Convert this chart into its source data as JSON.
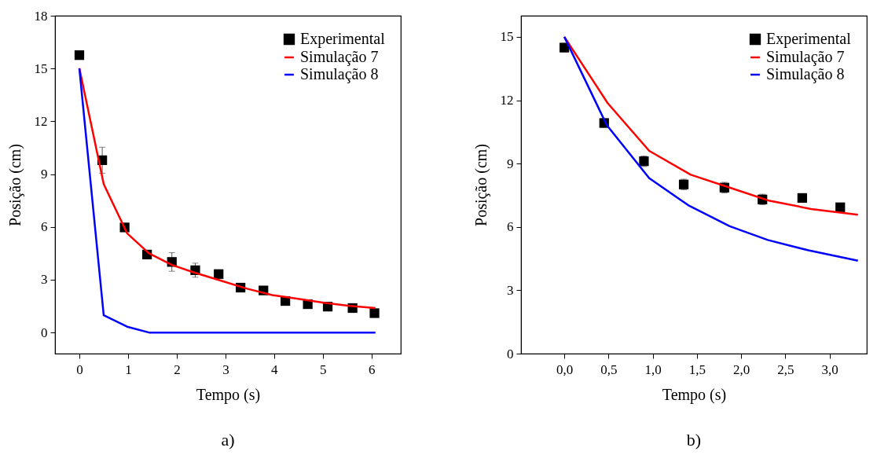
{
  "chart_data": [
    {
      "type": "line",
      "xlabel": "Tempo (s)",
      "ylabel": "Posição (cm)",
      "annotations": [
        "a)"
      ],
      "xlim": [
        -0.5,
        6.6
      ],
      "xticks": [
        0,
        1,
        2,
        3,
        4,
        5,
        6
      ],
      "ylim": [
        -1.2,
        18
      ],
      "yticks": [
        0,
        3,
        6,
        9,
        12,
        15,
        18
      ],
      "legend": "top right",
      "grid": false,
      "series": [
        {
          "name": "Experimental",
          "type": "scatter",
          "marker": "square",
          "color": "#000000",
          "x": [
            0,
            0.47,
            0.93,
            1.39,
            1.9,
            2.38,
            2.86,
            3.31,
            3.78,
            4.23,
            4.69,
            5.1,
            5.61,
            6.06
          ],
          "values": [
            15.76,
            9.79,
            5.97,
            4.43,
            4.01,
            3.54,
            3.32,
            2.55,
            2.39,
            1.79,
            1.61,
            1.47,
            1.39,
            1.1
          ],
          "errors": [
            null,
            0.74,
            0.15,
            0.15,
            0.53,
            0.4,
            0.2,
            0.2,
            0.2,
            0.15,
            0.2,
            0.15,
            0.15,
            0.15
          ]
        },
        {
          "name": "Simulação 7",
          "type": "line",
          "color": "#ff0000",
          "x": [
            0,
            0.5,
            0.98,
            1.43,
            1.9,
            2.38,
            2.9,
            3.43,
            3.96,
            4.49,
            5.02,
            5.55,
            6.08
          ],
          "values": [
            15.02,
            8.43,
            5.64,
            4.5,
            3.84,
            3.39,
            2.95,
            2.5,
            2.13,
            1.91,
            1.69,
            1.51,
            1.39
          ]
        },
        {
          "name": "Simulação 8",
          "type": "line",
          "color": "#0000ff",
          "x": [
            0,
            0.5,
            0.98,
            1.43,
            6.08
          ],
          "values": [
            15,
            0.98,
            0.33,
            0,
            0
          ]
        }
      ]
    },
    {
      "type": "line",
      "xlabel": "Tempo (s)",
      "ylabel": "Posição (cm)",
      "annotations": [
        "b)"
      ],
      "xlim": [
        -0.49,
        3.42
      ],
      "xticks": [
        {
          "value": 0,
          "label": "0,0"
        },
        {
          "value": 0.5,
          "label": "0,5"
        },
        {
          "value": 1,
          "label": "1,0"
        },
        {
          "value": 1.5,
          "label": "1,5"
        },
        {
          "value": 2,
          "label": "2,0"
        },
        {
          "value": 2.5,
          "label": "2,5"
        },
        {
          "value": 3,
          "label": "3,0"
        }
      ],
      "ylim": [
        0,
        16
      ],
      "yticks": [
        0,
        3,
        6,
        9,
        12,
        15
      ],
      "legend": "top right",
      "grid": false,
      "series": [
        {
          "name": "Experimental",
          "type": "scatter",
          "marker": "square",
          "color": "#000000",
          "x": [
            0,
            0.45,
            0.9,
            1.35,
            1.81,
            2.24,
            2.69,
            3.12
          ],
          "values": [
            14.49,
            10.92,
            9.11,
            8.01,
            7.86,
            7.3,
            7.37,
            6.93
          ],
          "errors": [
            0.2,
            0.2,
            0.25,
            0.25,
            0.25,
            0.25,
            0.2,
            0.15
          ]
        },
        {
          "name": "Simulação 7",
          "type": "line",
          "color": "#ff0000",
          "x": [
            0,
            0.49,
            0.96,
            1.43,
            1.87,
            2.31,
            2.79,
            3.32
          ],
          "values": [
            15,
            11.86,
            9.6,
            8.47,
            7.86,
            7.25,
            6.85,
            6.58
          ]
        },
        {
          "name": "Simulação 8",
          "type": "line",
          "color": "#0000ff",
          "x": [
            0,
            0.48,
            0.96,
            1.4,
            1.87,
            2.3,
            2.76,
            3.32
          ],
          "values": [
            15,
            10.82,
            8.31,
            7.03,
            6.03,
            5.38,
            4.89,
            4.4
          ]
        }
      ]
    }
  ]
}
